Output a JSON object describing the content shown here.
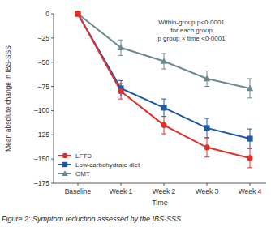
{
  "chart_data": {
    "type": "line",
    "caption": "Figure 2: Symptom reduction assessed by the IBS-SSS",
    "x_label": "Time",
    "y_label": "Mean absolute change in IBS-SSS",
    "annotations": [
      "Within-group p<0·0001",
      "for each group",
      "p group × time <0·0001"
    ],
    "categories": [
      "Baseline",
      "Week 1",
      "Week 2",
      "Week 3",
      "Week 4"
    ],
    "ylim": [
      -175,
      0
    ],
    "yticks": [
      0,
      {
        "value": -25,
        "label": "–25"
      },
      {
        "value": -50,
        "label": "–50"
      },
      {
        "value": -75,
        "label": "–75"
      },
      {
        "value": -100,
        "label": "–100"
      },
      {
        "value": -125,
        "label": "–125"
      },
      {
        "value": -150,
        "label": "–150"
      },
      {
        "value": -175,
        "label": "–175"
      }
    ],
    "legend": "lower-left",
    "grid": false,
    "series": [
      {
        "name": "LFTD",
        "color": "#e0322b",
        "marker": "circle",
        "values": [
          0,
          -80,
          -115,
          -138,
          -149
        ],
        "errors": [
          0,
          8,
          9,
          10,
          10
        ]
      },
      {
        "name": "Low-carbohydrate diet",
        "color": "#1f5aa6",
        "marker": "square",
        "values": [
          0,
          -77,
          -97,
          -118,
          -129
        ],
        "errors": [
          0,
          8,
          9,
          10,
          10
        ]
      },
      {
        "name": "OMT",
        "color": "#6b8a93",
        "marker": "triangle",
        "values": [
          0,
          -35,
          -49,
          -67,
          -77
        ],
        "errors": [
          0,
          8,
          8,
          8,
          10
        ]
      }
    ]
  }
}
